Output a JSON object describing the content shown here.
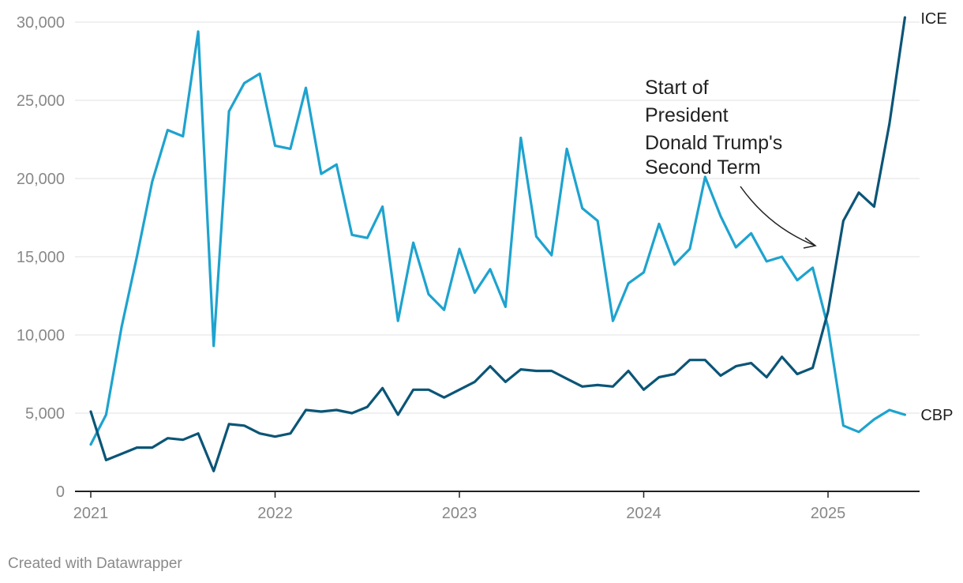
{
  "chart_data": {
    "type": "line",
    "title": "",
    "xlabel": "",
    "ylabel": "",
    "ylim": [
      0,
      30000
    ],
    "yticks": [
      0,
      5000,
      10000,
      15000,
      20000,
      25000,
      30000
    ],
    "ytick_labels": [
      "0",
      "5,000",
      "10,000",
      "15,000",
      "20,000",
      "25,000",
      "30,000"
    ],
    "xlim": [
      2021.0,
      2025.45
    ],
    "xticks": [
      2021,
      2022,
      2023,
      2024,
      2025
    ],
    "xtick_labels": [
      "2021",
      "2022",
      "2023",
      "2024",
      "2025"
    ],
    "grid": true,
    "x": [
      2021.0,
      2021.083,
      2021.167,
      2021.25,
      2021.333,
      2021.417,
      2021.5,
      2021.583,
      2021.667,
      2021.75,
      2021.833,
      2021.917,
      2022.0,
      2022.083,
      2022.167,
      2022.25,
      2022.333,
      2022.417,
      2022.5,
      2022.583,
      2022.667,
      2022.75,
      2022.833,
      2022.917,
      2023.0,
      2023.083,
      2023.167,
      2023.25,
      2023.333,
      2023.417,
      2023.5,
      2023.583,
      2023.667,
      2023.75,
      2023.833,
      2023.917,
      2024.0,
      2024.083,
      2024.167,
      2024.25,
      2024.333,
      2024.417,
      2024.5,
      2024.583,
      2024.667,
      2024.75,
      2024.833,
      2024.917,
      2025.0,
      2025.083,
      2025.167,
      2025.25,
      2025.333,
      2025.417
    ],
    "series": [
      {
        "name": "CBP",
        "color": "#1ea3cf",
        "values": [
          3000,
          4900,
          10500,
          15000,
          19800,
          23100,
          22700,
          29400,
          9300,
          24300,
          26100,
          26700,
          22100,
          21900,
          25800,
          20300,
          20900,
          16400,
          16200,
          18200,
          10900,
          15900,
          12600,
          11600,
          15500,
          12700,
          14200,
          11800,
          22600,
          16300,
          15100,
          21900,
          18100,
          17300,
          10900,
          13300,
          14000,
          17100,
          14500,
          15500,
          20100,
          17600,
          15600,
          16500,
          14700,
          15000,
          13500,
          14300,
          10500,
          4200,
          3800,
          4600,
          5200,
          4900
        ]
      },
      {
        "name": "ICE",
        "color": "#0b5577",
        "values": [
          5100,
          2000,
          2400,
          2800,
          2800,
          3400,
          3300,
          3700,
          1300,
          4300,
          4200,
          3700,
          3500,
          3700,
          5200,
          5100,
          5200,
          5000,
          5400,
          6600,
          4900,
          6500,
          6500,
          6000,
          6500,
          7000,
          8000,
          7000,
          7800,
          7700,
          7700,
          7200,
          6700,
          6800,
          6700,
          7700,
          6500,
          7300,
          7500,
          8400,
          8400,
          7400,
          8000,
          8200,
          7300,
          8600,
          7500,
          7900,
          11500,
          17300,
          19100,
          18200,
          23500,
          30300
        ]
      }
    ],
    "annotations": [
      {
        "lines": [
          "Start of",
          "President",
          "Donald Trump's",
          "Second Term"
        ],
        "x": 2025.0,
        "y": 15500
      }
    ]
  },
  "credit": "Created with Datawrapper"
}
